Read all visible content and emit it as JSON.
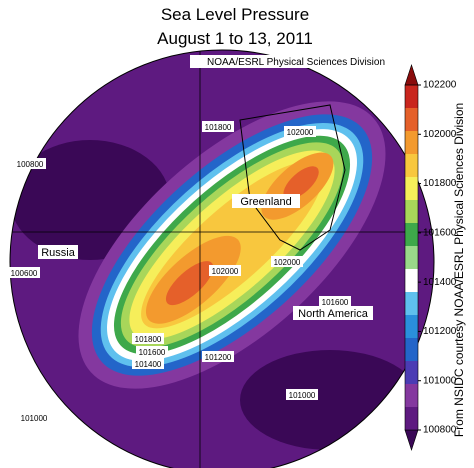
{
  "title": "Sea Level Pressure",
  "subtitle": "August 1 to 13, 2011",
  "source": "NOAA/ESRL Physical Sciences Division",
  "side_credit": "From NSIDC courtesy NOAA/ESRL Physical Sciences Division",
  "place_labels": [
    "Greenland",
    "Russia",
    "North America"
  ],
  "contour_labels": [
    "101800",
    "102000",
    "100800",
    "100600",
    "102000",
    "102000",
    "101600",
    "101800",
    "101600",
    "101400",
    "101200",
    "101000",
    "101000"
  ],
  "colorbar": {
    "lim": [
      100800,
      102200
    ],
    "ticks": [
      100800,
      101000,
      101200,
      101400,
      101600,
      101800,
      102000,
      102200
    ],
    "colors": [
      "#3a0856",
      "#5e1a80",
      "#84389f",
      "#4b3cb4",
      "#2365c9",
      "#2a8fdc",
      "#5fc0ee",
      "#ffffff",
      "#9ad98a",
      "#3ea84a",
      "#a8d65a",
      "#f6ee5a",
      "#f8c73e",
      "#f39a2e",
      "#e5602a",
      "#c9261e",
      "#8a0c0c"
    ]
  }
}
